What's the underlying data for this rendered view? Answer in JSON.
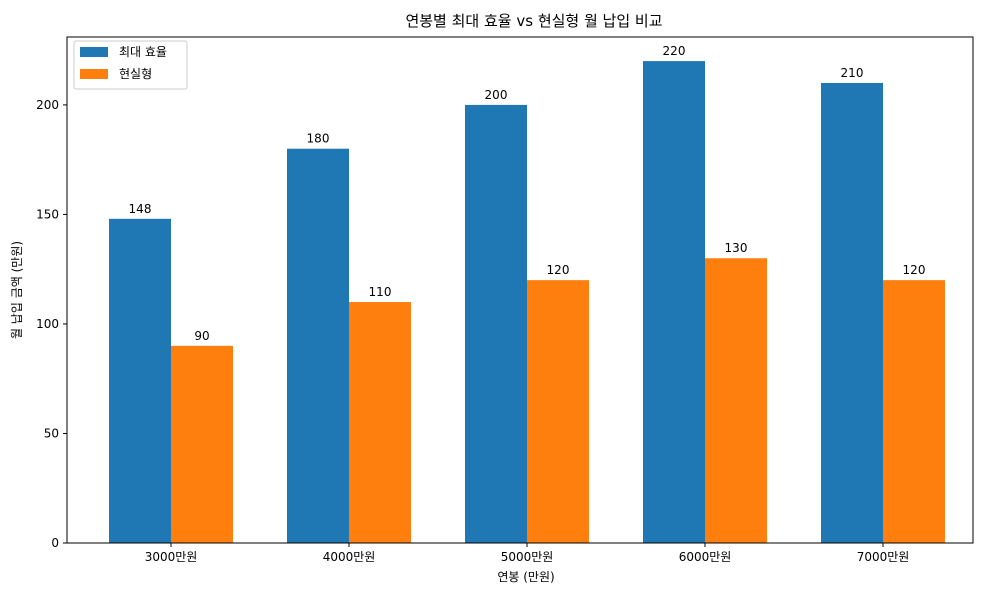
{
  "chart_data": {
    "type": "bar",
    "title": "연봉별 최대 효율 vs 현실형 월 납입 비교",
    "xlabel": "연봉 (만원)",
    "ylabel": "월 납입 금액 (만원)",
    "categories": [
      "3000만원",
      "4000만원",
      "5000만원",
      "6000만원",
      "7000만원"
    ],
    "series": [
      {
        "name": "최대 효율",
        "values": [
          148,
          180,
          200,
          220,
          210
        ],
        "color": "#1f77b4"
      },
      {
        "name": "현실형",
        "values": [
          90,
          110,
          120,
          130,
          120
        ],
        "color": "#ff7f0e"
      }
    ],
    "ylim": [
      0,
      231
    ],
    "yticks": [
      0,
      50,
      100,
      150,
      200
    ],
    "grid": false,
    "legend_position": "top-left",
    "data_labels": true
  }
}
